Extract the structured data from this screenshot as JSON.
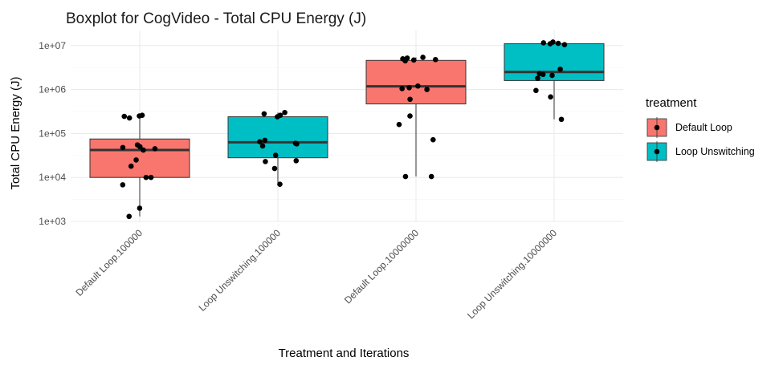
{
  "chart_data": {
    "type": "boxplot",
    "title": "Boxplot for CogVideo - Total CPU Energy (J)",
    "xlabel": "Treatment and Iterations",
    "ylabel": "Total CPU Energy (J)",
    "y_scale": "log10",
    "ylim": [
      1000,
      12000000
    ],
    "y_ticks": [
      1000,
      10000,
      100000,
      1000000,
      10000000
    ],
    "y_tick_labels": [
      "1e+03",
      "1e+04",
      "1e+05",
      "1e+06",
      "1e+07"
    ],
    "grid": true,
    "legend": {
      "title": "treatment",
      "position": "right",
      "entries": [
        {
          "name": "Default Loop",
          "color": "#F8766D"
        },
        {
          "name": "Loop Unswitching",
          "color": "#00BFC4"
        }
      ]
    },
    "categories": [
      "Default Loop.100000",
      "Loop Unswitching.100000",
      "Default Loop.10000000",
      "Loop Unswitching.10000000"
    ],
    "boxes": [
      {
        "category": "Default Loop.100000",
        "treatment": "Default Loop",
        "color": "#F8766D",
        "whisker_low": 1300,
        "q1": 10000,
        "median": 42000,
        "q3": 75000,
        "whisker_high": 260000,
        "points": [
          250000,
          260000,
          245000,
          225000,
          55000,
          50000,
          48000,
          45000,
          42000,
          25000,
          18000,
          10000,
          10000,
          6800,
          2000,
          1300
        ]
      },
      {
        "category": "Loop Unswitching.100000",
        "treatment": "Loop Unswitching",
        "color": "#00BFC4",
        "whisker_low": 7000,
        "q1": 28000,
        "median": 63000,
        "q3": 240000,
        "whisker_high": 300000,
        "points": [
          300000,
          280000,
          260000,
          240000,
          70000,
          65000,
          60000,
          58000,
          52000,
          32000,
          24000,
          23000,
          16000,
          7000
        ]
      },
      {
        "category": "Default Loop.10000000",
        "treatment": "Default Loop",
        "color": "#F8766D",
        "whisker_low": 10500,
        "q1": 470000,
        "median": 1180000,
        "q3": 4600000,
        "whisker_high": 5400000,
        "points": [
          5400000,
          5200000,
          5000000,
          4800000,
          4700000,
          4500000,
          1200000,
          1100000,
          1050000,
          1000000,
          600000,
          250000,
          160000,
          72000,
          10500,
          10500
        ]
      },
      {
        "category": "Loop Unswitching.10000000",
        "treatment": "Loop Unswitching",
        "color": "#00BFC4",
        "whisker_low": 210000,
        "q1": 1600000,
        "median": 2500000,
        "q3": 11000000,
        "whisker_high": 12000000,
        "points": [
          12000000,
          11500000,
          11200000,
          11000000,
          10500000,
          2900000,
          2300000,
          2200000,
          2100000,
          1800000,
          950000,
          680000,
          210000
        ]
      }
    ]
  }
}
